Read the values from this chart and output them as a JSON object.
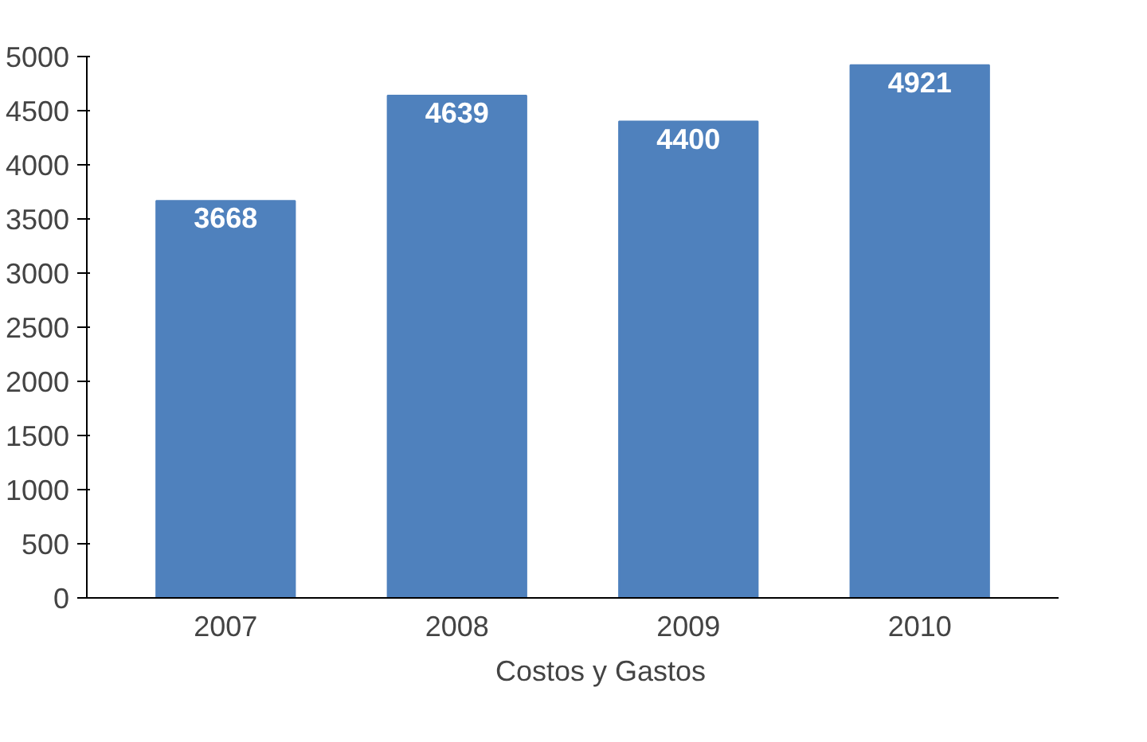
{
  "chart_data": {
    "type": "bar",
    "categories": [
      "2007",
      "2008",
      "2009",
      "2010"
    ],
    "series": [
      {
        "name": "Costos y Gastos",
        "color": "#4f81bd",
        "values": [
          3668,
          4639,
          4400,
          4921
        ]
      }
    ],
    "ylim": [
      0,
      5000
    ],
    "yticks": [
      0,
      500,
      1000,
      1500,
      2000,
      2500,
      3000,
      3500,
      4000,
      4500,
      5000
    ],
    "data_labels": true,
    "grid": false,
    "legend": "bottom"
  }
}
